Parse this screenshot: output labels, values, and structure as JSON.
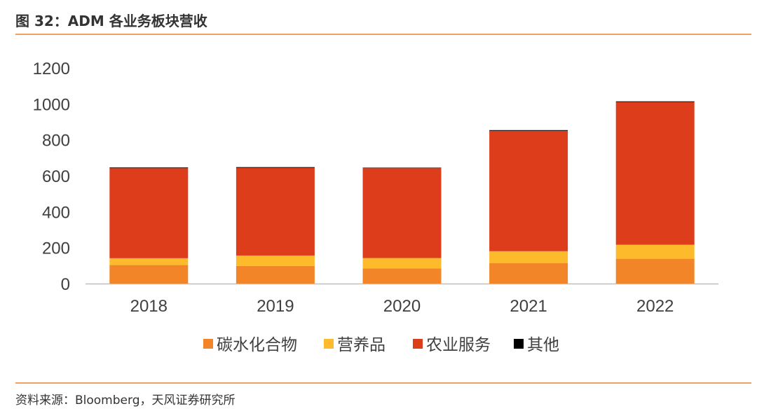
{
  "figure": {
    "title": "图 32：ADM 各业务板块营收",
    "source": "资料来源：Bloomberg，天风证券研究所"
  },
  "chart_data": {
    "type": "bar",
    "stacked": true,
    "title": "",
    "xlabel": "",
    "ylabel": "",
    "categories": [
      "2018",
      "2019",
      "2020",
      "2021",
      "2022"
    ],
    "ylim": [
      0,
      1200
    ],
    "yticks": [
      0,
      200,
      400,
      600,
      800,
      1000,
      1200
    ],
    "grid": false,
    "legend_position": "bottom",
    "series": [
      {
        "name": "碳水化合物",
        "color": "#F28527",
        "values": [
          103,
          98,
          84,
          113,
          138
        ]
      },
      {
        "name": "营养品",
        "color": "#FDBB2B",
        "values": [
          38,
          58,
          58,
          67,
          78
        ]
      },
      {
        "name": "农业服务",
        "color": "#DE3D1B",
        "values": [
          501,
          488,
          500,
          670,
          794
        ]
      },
      {
        "name": "其他",
        "color": "#000000",
        "values": [
          4,
          4,
          3,
          4,
          4
        ]
      }
    ]
  }
}
